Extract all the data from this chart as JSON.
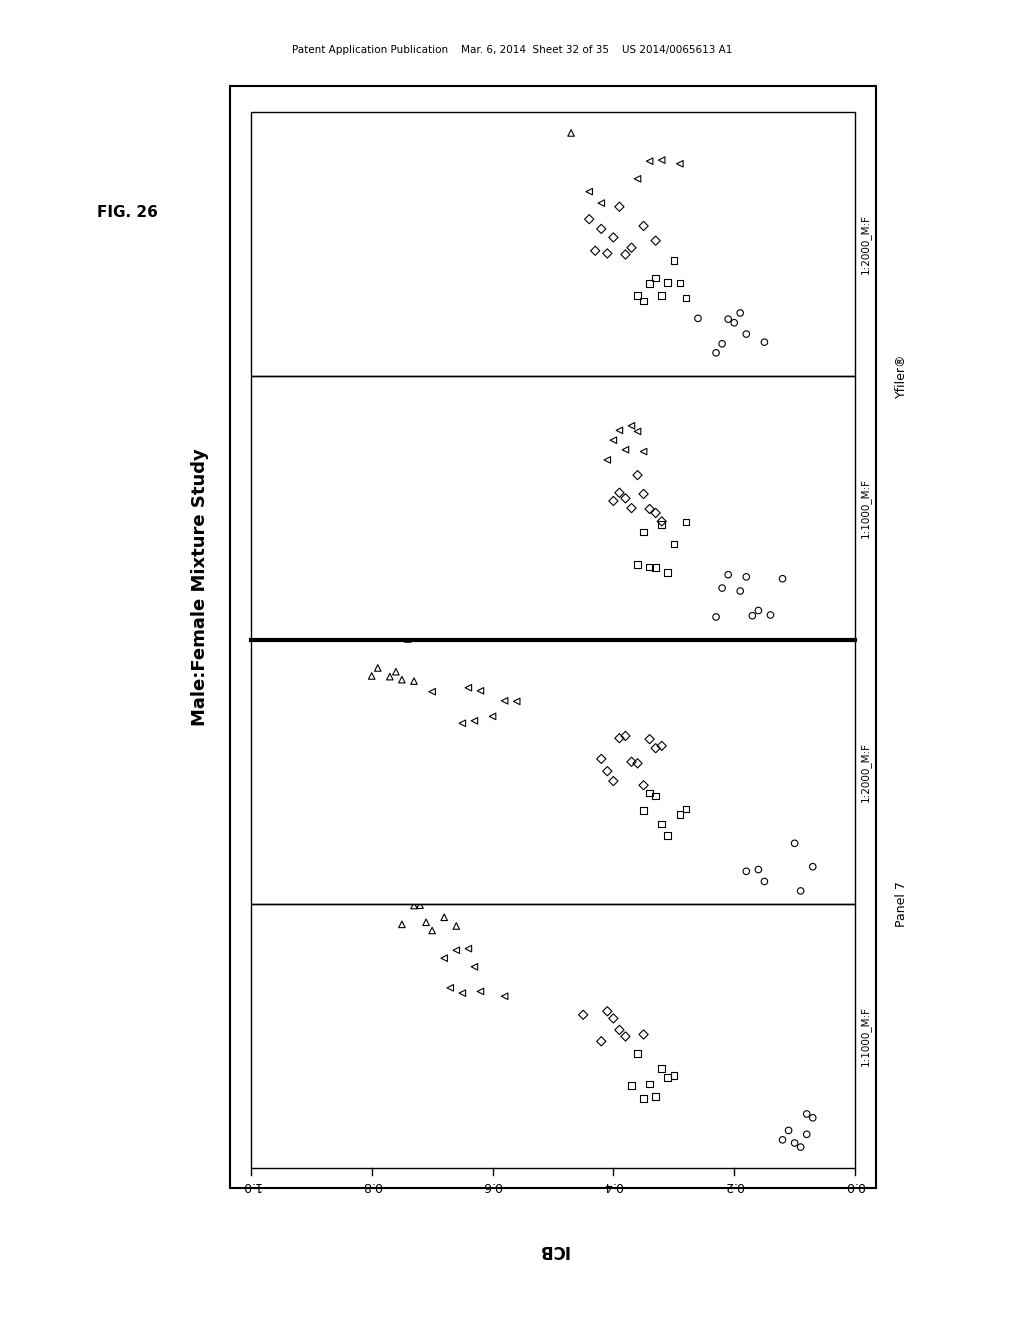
{
  "title": "Male:Female Mixture Study",
  "fig_label": "FIG. 26",
  "xlabel": "ICB",
  "patent_header": "Patent Application Publication    Mar. 6, 2014  Sheet 32 of 35    US 2014/0065613 A1",
  "background_color": "#ffffff",
  "xlim": [
    0.0,
    1.0
  ],
  "xticks": [
    0.0,
    0.2,
    0.4,
    0.6,
    0.8,
    1.0
  ],
  "sections": [
    {
      "label": "1:1000_M:F",
      "group": "Panel 7",
      "y": 0
    },
    {
      "label": "1:2000_M:F",
      "group": "Panel 7",
      "y": 1
    },
    {
      "label": "1:1000_M:F",
      "group": "Yfiler®",
      "y": 2
    },
    {
      "label": "1:2000_M:F",
      "group": "Yfiler®",
      "y": 3
    }
  ],
  "data": {
    "panel7_1000": {
      "circles": [
        0.07,
        0.08,
        0.08,
        0.09,
        0.1,
        0.11,
        0.12
      ],
      "squares": [
        0.3,
        0.31,
        0.32,
        0.33,
        0.34,
        0.35,
        0.36,
        0.37
      ],
      "diamonds": [
        0.35,
        0.38,
        0.39,
        0.4,
        0.41,
        0.42,
        0.45
      ],
      "triangles_left": [
        0.58,
        0.62,
        0.63,
        0.64,
        0.65,
        0.66,
        0.67,
        0.68
      ],
      "triangles_up": [
        0.66,
        0.68,
        0.7,
        0.71,
        0.72,
        0.73,
        0.75
      ]
    },
    "panel7_2000": {
      "circles": [
        0.07,
        0.09,
        0.1,
        0.15,
        0.16,
        0.18
      ],
      "squares": [
        0.28,
        0.29,
        0.31,
        0.32,
        0.33,
        0.34,
        0.35
      ],
      "diamonds": [
        0.32,
        0.33,
        0.34,
        0.35,
        0.36,
        0.37,
        0.38,
        0.39,
        0.4,
        0.41,
        0.42
      ],
      "triangles_left": [
        0.56,
        0.58,
        0.6,
        0.62,
        0.63,
        0.64,
        0.65,
        0.7
      ],
      "triangles_up": [
        0.73,
        0.74,
        0.75,
        0.76,
        0.77,
        0.78,
        0.79,
        0.8
      ]
    },
    "yfiler_1000": {
      "circles": [
        0.12,
        0.14,
        0.16,
        0.17,
        0.18,
        0.19,
        0.21,
        0.22,
        0.23
      ],
      "squares": [
        0.28,
        0.3,
        0.31,
        0.32,
        0.33,
        0.34,
        0.35,
        0.36
      ],
      "diamonds": [
        0.32,
        0.33,
        0.34,
        0.35,
        0.36,
        0.37,
        0.38,
        0.39,
        0.4
      ],
      "triangles_left": [
        0.35,
        0.36,
        0.37,
        0.38,
        0.39,
        0.4,
        0.41
      ],
      "triangles_up": []
    },
    "yfiler_2000": {
      "circles": [
        0.15,
        0.18,
        0.19,
        0.2,
        0.21,
        0.22,
        0.23,
        0.26
      ],
      "squares": [
        0.28,
        0.29,
        0.3,
        0.31,
        0.32,
        0.33,
        0.34,
        0.35,
        0.36
      ],
      "diamonds": [
        0.33,
        0.35,
        0.37,
        0.38,
        0.39,
        0.4,
        0.41,
        0.42,
        0.43,
        0.44
      ],
      "triangles_left": [
        0.29,
        0.32,
        0.34,
        0.36,
        0.42,
        0.44
      ],
      "triangles_up": [
        0.47
      ]
    }
  }
}
